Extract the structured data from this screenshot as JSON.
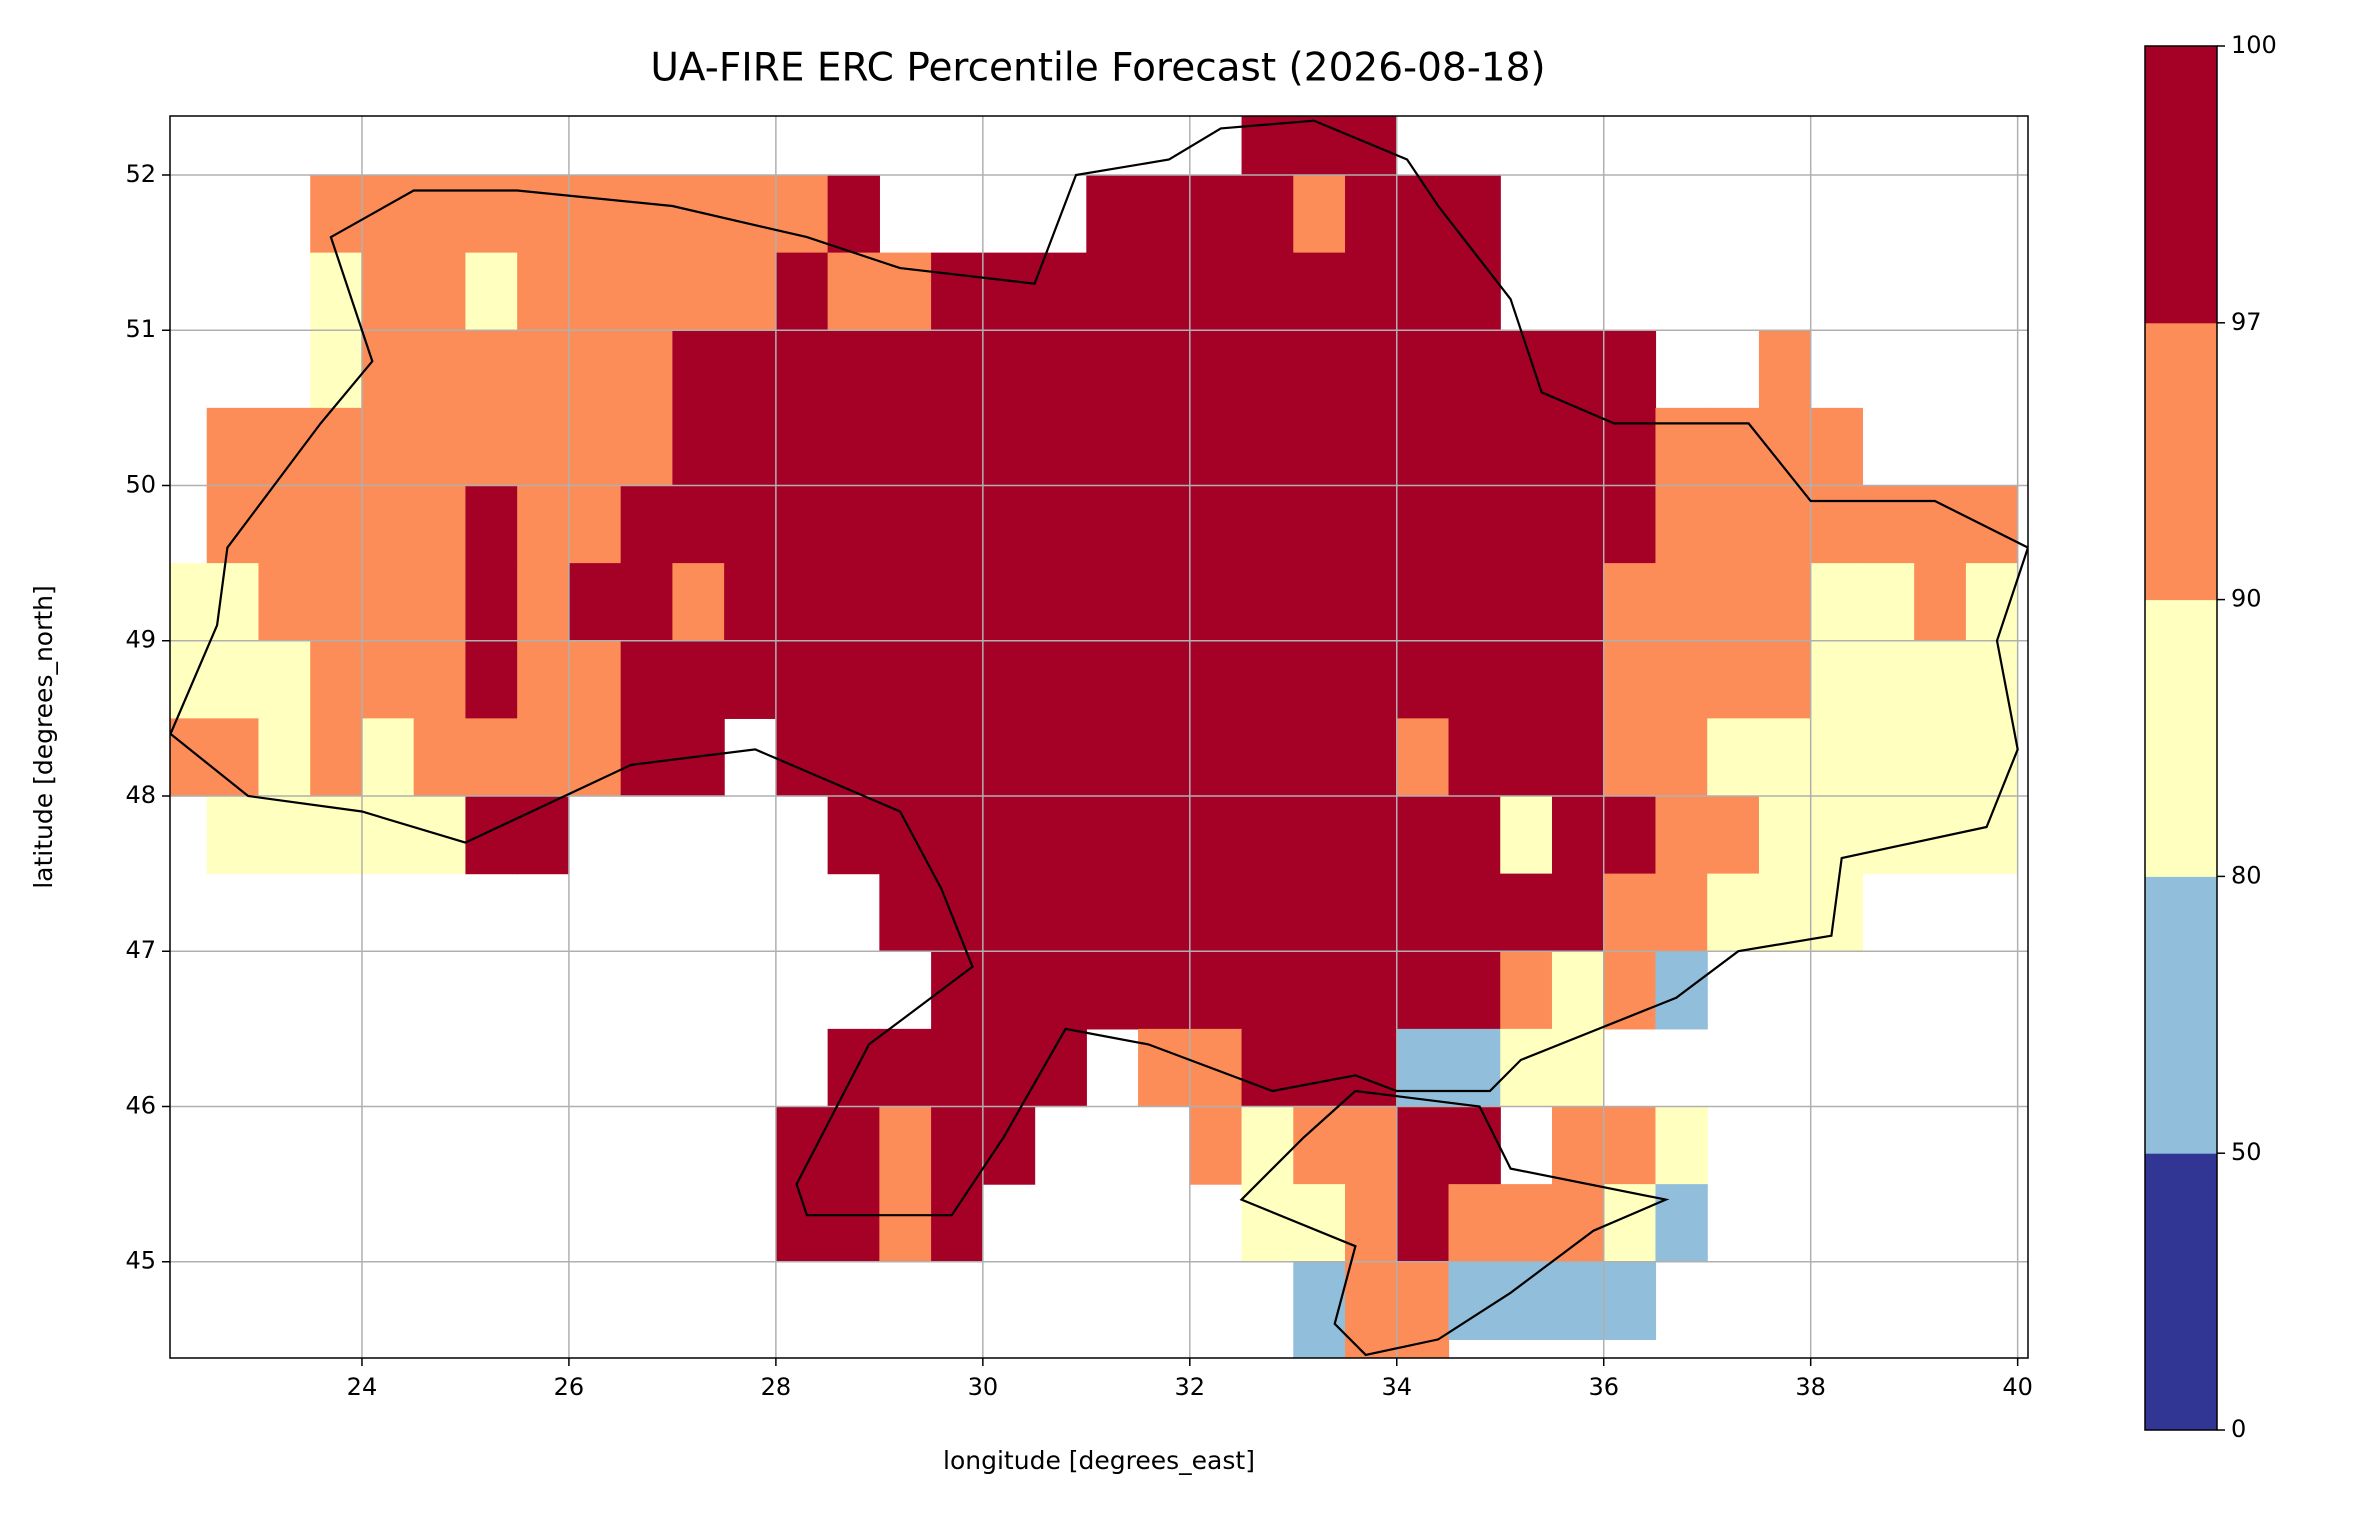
{
  "chart_data": {
    "type": "heatmap",
    "title": "UA-FIRE ERC Percentile Forecast (2026-08-18)",
    "x_label": "longitude [degrees_east]",
    "y_label": "latitude [degrees_north]",
    "xlim": [
      22.145,
      40.1
    ],
    "ylim": [
      44.38,
      52.38
    ],
    "xticks": [
      24,
      26,
      28,
      30,
      32,
      34,
      36,
      38,
      40
    ],
    "yticks": [
      45,
      46,
      47,
      48,
      49,
      50,
      51,
      52
    ],
    "grid": true,
    "colorbar": {
      "bounds": [
        0,
        50,
        80,
        90,
        97,
        100
      ],
      "colors": [
        "#313695",
        "#91bfdb",
        "#ffffbf",
        "#fc8d59",
        "#a50026"
      ]
    },
    "x": [
      22.25,
      22.75,
      23.25,
      23.75,
      24.25,
      24.75,
      25.25,
      25.75,
      26.25,
      26.75,
      27.25,
      27.75,
      28.25,
      28.75,
      29.25,
      29.75,
      30.25,
      30.75,
      31.25,
      31.75,
      32.25,
      32.75,
      33.25,
      33.75,
      34.25,
      34.75,
      35.25,
      35.75,
      36.25,
      36.75,
      37.25,
      37.75,
      38.25,
      38.75,
      39.25,
      39.75
    ],
    "y": [
      52.25,
      51.75,
      51.25,
      50.75,
      50.25,
      49.75,
      49.25,
      48.75,
      48.25,
      47.75,
      47.25,
      46.75,
      46.25,
      45.75,
      45.25,
      44.75,
      44.25
    ],
    "values": [
      [
        null,
        null,
        null,
        null,
        null,
        null,
        null,
        null,
        null,
        null,
        null,
        null,
        null,
        null,
        null,
        null,
        null,
        null,
        null,
        null,
        null,
        98,
        98,
        98,
        null,
        null,
        null,
        null,
        null,
        null,
        null,
        null,
        null,
        null,
        null,
        null
      ],
      [
        null,
        null,
        null,
        94,
        94,
        94,
        94,
        94,
        94,
        94,
        94,
        94,
        94,
        98,
        null,
        null,
        null,
        null,
        98,
        98,
        98,
        98,
        94,
        98,
        98,
        98,
        null,
        null,
        null,
        null,
        null,
        null,
        null,
        null,
        null,
        null
      ],
      [
        null,
        null,
        null,
        85,
        94,
        94,
        85,
        94,
        94,
        94,
        94,
        94,
        98,
        94,
        94,
        98,
        98,
        98,
        98,
        98,
        98,
        98,
        98,
        98,
        98,
        98,
        null,
        null,
        null,
        null,
        null,
        null,
        null,
        null,
        null,
        null
      ],
      [
        null,
        null,
        null,
        85,
        94,
        94,
        94,
        94,
        94,
        94,
        98,
        98,
        98,
        98,
        98,
        98,
        98,
        98,
        98,
        98,
        98,
        98,
        98,
        98,
        98,
        98,
        98,
        98,
        98,
        null,
        null,
        94,
        null,
        null,
        null,
        null
      ],
      [
        null,
        94,
        94,
        94,
        94,
        94,
        94,
        94,
        94,
        94,
        98,
        98,
        98,
        98,
        98,
        98,
        98,
        98,
        98,
        98,
        98,
        98,
        98,
        98,
        98,
        98,
        98,
        98,
        98,
        94,
        94,
        94,
        94,
        null,
        null,
        null
      ],
      [
        null,
        94,
        94,
        94,
        94,
        94,
        98,
        94,
        94,
        98,
        98,
        98,
        98,
        98,
        98,
        98,
        98,
        98,
        98,
        98,
        98,
        98,
        98,
        98,
        98,
        98,
        98,
        98,
        98,
        94,
        94,
        94,
        94,
        94,
        94,
        94
      ],
      [
        85,
        85,
        94,
        94,
        94,
        94,
        98,
        94,
        98,
        98,
        94,
        98,
        98,
        98,
        98,
        98,
        98,
        98,
        98,
        98,
        98,
        98,
        98,
        98,
        98,
        98,
        98,
        98,
        94,
        94,
        94,
        94,
        85,
        85,
        94,
        85
      ],
      [
        85,
        85,
        85,
        94,
        94,
        94,
        98,
        94,
        94,
        98,
        98,
        98,
        98,
        98,
        98,
        98,
        98,
        98,
        98,
        98,
        98,
        98,
        98,
        98,
        98,
        98,
        98,
        98,
        94,
        94,
        94,
        94,
        85,
        85,
        85,
        85
      ],
      [
        94,
        94,
        85,
        94,
        85,
        94,
        94,
        94,
        94,
        98,
        98,
        null,
        98,
        98,
        98,
        98,
        98,
        98,
        98,
        98,
        98,
        98,
        98,
        98,
        94,
        98,
        98,
        98,
        94,
        94,
        85,
        85,
        85,
        85,
        85,
        85
      ],
      [
        null,
        85,
        85,
        85,
        85,
        85,
        98,
        98,
        null,
        null,
        null,
        null,
        null,
        98,
        98,
        98,
        98,
        98,
        98,
        98,
        98,
        98,
        98,
        98,
        98,
        98,
        85,
        98,
        98,
        94,
        94,
        85,
        85,
        85,
        85,
        85
      ],
      [
        null,
        null,
        null,
        null,
        null,
        null,
        null,
        null,
        null,
        null,
        null,
        null,
        null,
        null,
        98,
        98,
        98,
        98,
        98,
        98,
        98,
        98,
        98,
        98,
        98,
        98,
        98,
        98,
        94,
        94,
        85,
        85,
        85,
        null,
        null,
        null
      ],
      [
        null,
        null,
        null,
        null,
        null,
        null,
        null,
        null,
        null,
        null,
        null,
        null,
        null,
        null,
        null,
        98,
        98,
        98,
        98,
        98,
        98,
        98,
        98,
        98,
        98,
        98,
        94,
        85,
        94,
        65,
        null,
        null,
        null,
        null,
        null,
        null
      ],
      [
        null,
        null,
        null,
        null,
        null,
        null,
        null,
        null,
        null,
        null,
        null,
        null,
        null,
        98,
        98,
        98,
        98,
        98,
        null,
        94,
        94,
        98,
        98,
        98,
        65,
        65,
        85,
        85,
        null,
        null,
        null,
        null,
        null,
        null,
        null,
        null
      ],
      [
        null,
        null,
        null,
        null,
        null,
        null,
        null,
        null,
        null,
        null,
        null,
        null,
        98,
        98,
        94,
        98,
        98,
        null,
        null,
        null,
        94,
        85,
        94,
        94,
        98,
        98,
        null,
        94,
        94,
        85,
        null,
        null,
        null,
        null,
        null,
        null
      ],
      [
        null,
        null,
        null,
        null,
        null,
        null,
        null,
        null,
        null,
        null,
        null,
        null,
        98,
        98,
        94,
        98,
        null,
        null,
        null,
        null,
        null,
        85,
        85,
        94,
        98,
        94,
        94,
        94,
        85,
        65,
        null,
        null,
        null,
        null,
        null,
        null
      ],
      [
        null,
        null,
        null,
        null,
        null,
        null,
        null,
        null,
        null,
        null,
        null,
        null,
        null,
        null,
        null,
        null,
        null,
        null,
        null,
        null,
        null,
        null,
        65,
        94,
        94,
        65,
        65,
        65,
        65,
        null,
        null,
        null,
        null,
        null,
        null,
        null
      ],
      [
        null,
        null,
        null,
        null,
        null,
        null,
        null,
        null,
        null,
        null,
        null,
        null,
        null,
        null,
        null,
        null,
        null,
        null,
        null,
        null,
        null,
        null,
        65,
        94,
        94,
        null,
        null,
        null,
        null,
        null,
        null,
        null,
        null,
        null,
        null,
        null
      ]
    ]
  }
}
